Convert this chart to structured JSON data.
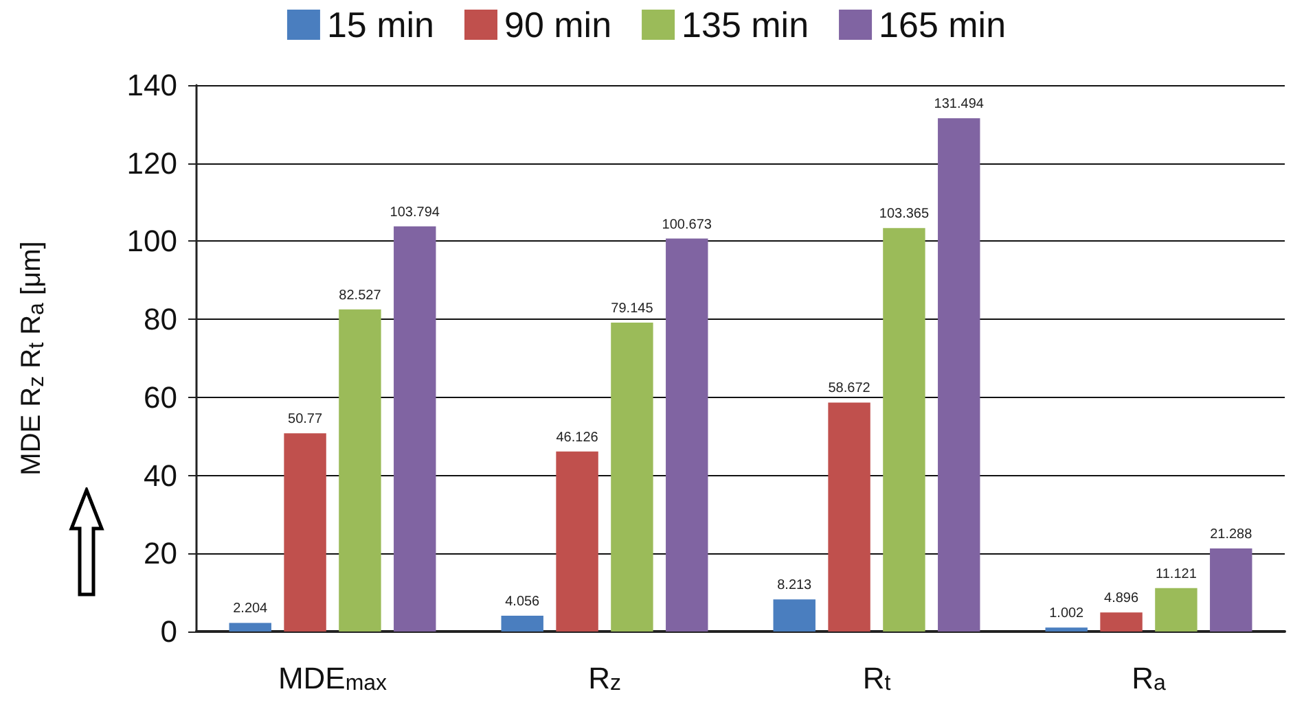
{
  "chart_data": {
    "type": "bar",
    "categories": [
      "MDE$_{max}$",
      "R$_{z}$",
      "R$_{t}$",
      "R$_{a}$"
    ],
    "ylabel": "MDE R$_{z}$ R$_{t}$ R$_{a}$ [μm]",
    "series": [
      {
        "name": "15 min",
        "color": "#4a7ebf",
        "values": [
          2.204,
          4.056,
          8.213,
          1.002
        ]
      },
      {
        "name": "90 min",
        "color": "#c0504d",
        "values": [
          50.77,
          46.126,
          58.672,
          4.896
        ]
      },
      {
        "name": "135 min",
        "color": "#9bbb59",
        "values": [
          82.527,
          79.145,
          103.365,
          11.121
        ]
      },
      {
        "name": "165 min",
        "color": "#8064a2",
        "values": [
          103.794,
          100.673,
          131.494,
          21.288
        ]
      }
    ],
    "ylim": [
      0,
      140
    ],
    "yticks": [
      0,
      20,
      40,
      60,
      80,
      100,
      120,
      140
    ],
    "grid": "y",
    "legend": "top",
    "data_labels": true
  }
}
